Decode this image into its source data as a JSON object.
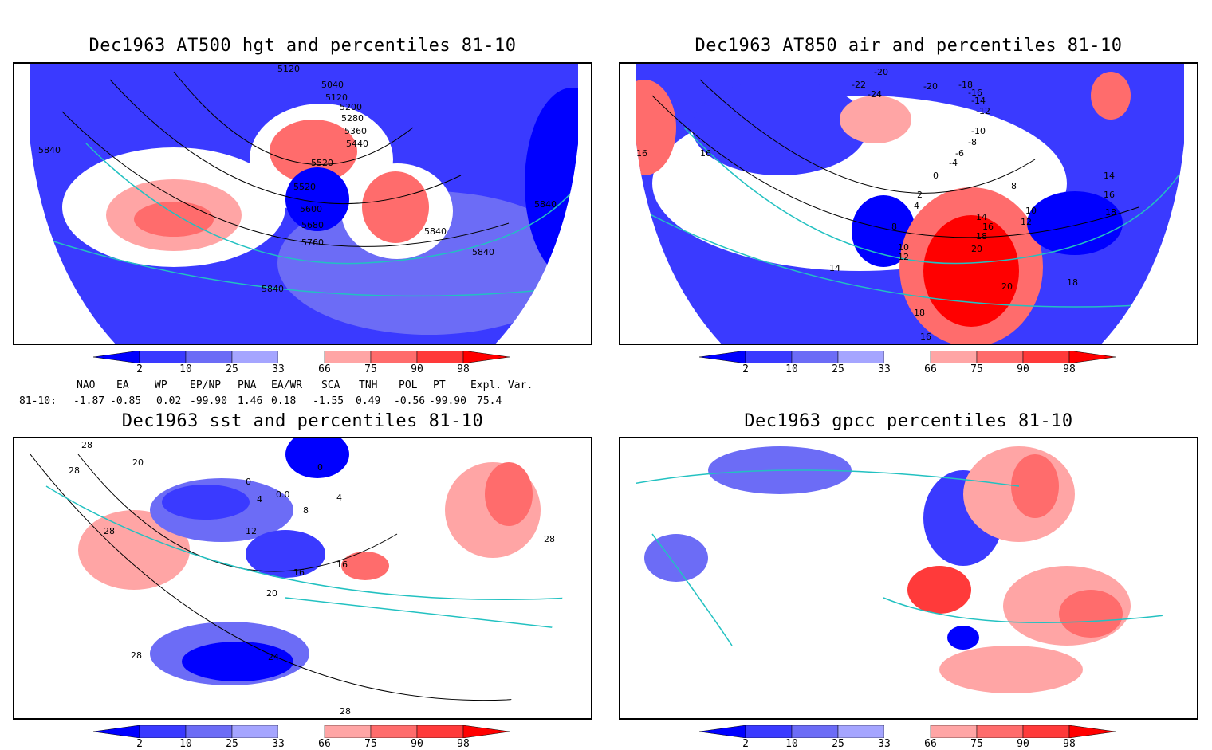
{
  "titles": {
    "hgt": "Dec1963 AT500 hgt and percentiles 81-10",
    "air": "Dec1963 AT850 air and percentiles 81-10",
    "sst": "Dec1963 sst and percentiles 81-10",
    "gpcc": "Dec1963 gpcc percentiles 81-10"
  },
  "colorbar": {
    "labels": [
      "2",
      "10",
      "25",
      "33",
      "66",
      "75",
      "90",
      "98"
    ],
    "colors": [
      "#0000ff",
      "#3a3aff",
      "#6c6cf6",
      "#a5a5ff",
      "#ffffff",
      "#ffa5a5",
      "#ff6c6c",
      "#ff3a3a",
      "#ff0000"
    ]
  },
  "indices": {
    "headers": [
      "NAO",
      "EA",
      "WP",
      "EP/NP",
      "PNA",
      "EA/WR",
      "SCA",
      "TNH",
      "POL",
      "PT",
      "Expl. Var."
    ],
    "row_label": "81-10:",
    "values": [
      "-1.87",
      "-0.85",
      "0.02",
      "-99.90",
      "1.46",
      "0.18",
      "-1.55",
      "0.49",
      "-0.56",
      "-99.90",
      "75.4"
    ]
  },
  "contour_labels": {
    "hgt": [
      "5120",
      "5040",
      "5120",
      "5200",
      "5280",
      "5360",
      "5440",
      "5520",
      "5520",
      "5600",
      "5680",
      "5760",
      "5840",
      "5840",
      "5840",
      "5840",
      "5840"
    ],
    "air": [
      "-20",
      "-22",
      "-24",
      "-20",
      "-18",
      "-16",
      "-14",
      "-12",
      "-10",
      "-8",
      "-6",
      "-4",
      "0",
      "2",
      "4",
      "8",
      "8",
      "10",
      "12",
      "14",
      "16",
      "18",
      "20",
      "14",
      "16",
      "18",
      "10",
      "12",
      "14",
      "16",
      "16",
      "18",
      "18",
      "20",
      "16"
    ],
    "sst": [
      "28",
      "20",
      "28",
      "28",
      "0",
      "0",
      "4",
      "0.0",
      "8",
      "12",
      "16",
      "16",
      "20",
      "24",
      "28",
      "28",
      "28",
      "4"
    ]
  },
  "colors": {
    "coast": "#22c1c1",
    "grid": "#888888"
  }
}
